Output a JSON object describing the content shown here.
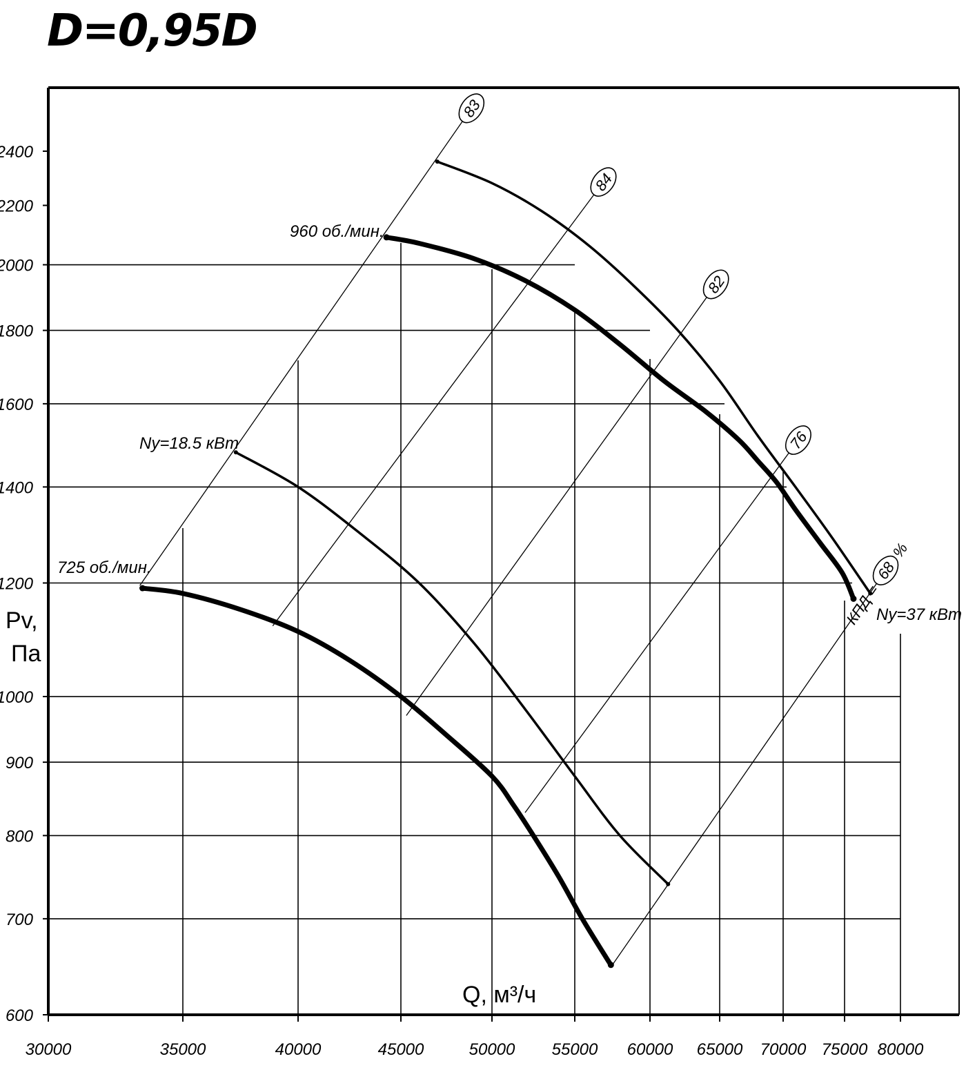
{
  "chart_data": {
    "type": "line",
    "title": "D=0,95D",
    "xlabel": "Q, м³/ч",
    "ylabel": [
      "Pv,",
      "Па"
    ],
    "xlim": [
      30000,
      80000
    ],
    "ylim": [
      600,
      2400
    ],
    "yscale": "log",
    "xticks": [
      30000,
      35000,
      40000,
      45000,
      50000,
      55000,
      60000,
      65000,
      70000,
      75000,
      80000
    ],
    "xtick_labels": [
      "30000",
      "35000",
      "40000",
      "45000",
      "50000",
      "55000",
      "60000",
      "65000",
      "70000",
      "75000",
      "80000"
    ],
    "yticks": [
      600,
      700,
      800,
      900,
      1000,
      1200,
      1400,
      1600,
      1800,
      2000,
      2200,
      2400
    ],
    "ytick_labels": [
      "600",
      "700",
      "800",
      "900",
      "1000",
      "1200",
      "1400",
      "1600",
      "1800",
      "2000",
      "2200",
      "2400"
    ],
    "grid": true,
    "series": [
      {
        "name": "960 об./мин.",
        "weight": "thick",
        "x": [
          44300,
          46000,
          49000,
          52000,
          55000,
          58000,
          61000,
          64000,
          66500,
          68000,
          69500,
          71000,
          73000,
          74800,
          75800
        ],
        "y": [
          2090,
          2070,
          2020,
          1950,
          1860,
          1760,
          1660,
          1580,
          1510,
          1460,
          1410,
          1350,
          1280,
          1220,
          1170
        ]
      },
      {
        "name": "725 об./мин.",
        "weight": "thick",
        "x": [
          33500,
          35000,
          37500,
          40000,
          42500,
          45000,
          47500,
          50000,
          51300,
          52500,
          54000,
          55500,
          57000,
          57400
        ],
        "y": [
          1190,
          1180,
          1150,
          1110,
          1060,
          1000,
          940,
          880,
          840,
          800,
          750,
          700,
          660,
          650
        ]
      },
      {
        "name": "Ny=18.5 кВт",
        "weight": "thin",
        "x": [
          37300,
          40000,
          43000,
          46000,
          49000,
          52000,
          55000,
          58000,
          61300
        ],
        "y": [
          1480,
          1400,
          1300,
          1200,
          1090,
          980,
          880,
          800,
          740
        ]
      },
      {
        "name": "Ny=37 кВт",
        "weight": "thin",
        "x": [
          47000,
          50000,
          53000,
          56000,
          59000,
          62000,
          65000,
          68000,
          71000,
          74000,
          77300
        ],
        "y": [
          2360,
          2280,
          2180,
          2060,
          1930,
          1800,
          1660,
          1520,
          1400,
          1290,
          1180
        ]
      }
    ],
    "efficiency_lines": [
      {
        "label": "83",
        "from": [
          33400,
          1195
        ],
        "to": [
          48400,
          2520
        ]
      },
      {
        "label": "84",
        "from": [
          38900,
          1120
        ],
        "to": [
          56300,
          2240
        ]
      },
      {
        "label": "82",
        "from": [
          45300,
          970
        ],
        "to": [
          64100,
          1900
        ]
      },
      {
        "label": "76",
        "from": [
          52000,
          830
        ],
        "to": [
          70500,
          1480
        ]
      },
      {
        "label": "68",
        "from": [
          57500,
          650
        ],
        "to": [
          77900,
          1200
        ]
      }
    ],
    "efficiency_prefix": "КПД =",
    "efficiency_unit": "%",
    "labels": {
      "rpm_960": "960 об./мин.",
      "rpm_725": "725 об./мин.",
      "power_18": "Ny=18.5 кВт",
      "power_37": "Ny=37 кВт"
    }
  }
}
